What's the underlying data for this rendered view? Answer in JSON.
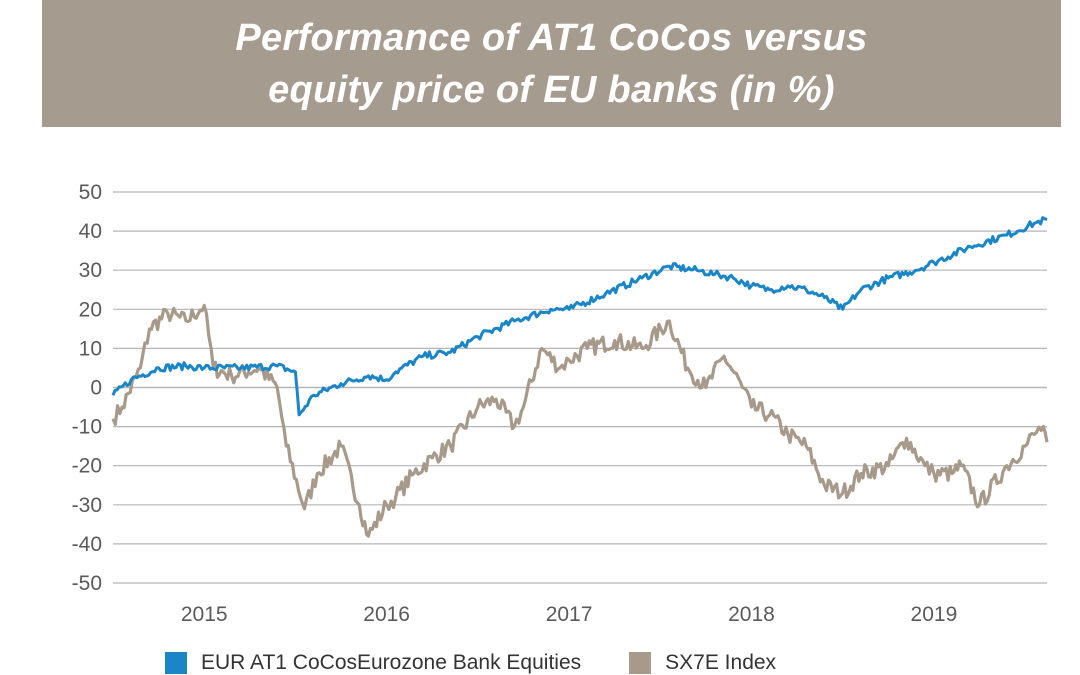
{
  "title": {
    "line1": "Performance of AT1 CoCos versus",
    "line2": "equity price of EU banks (in %)"
  },
  "colors": {
    "banner": "#a69b8f",
    "cocos": "#1a86c8",
    "sx7e": "#a89a8a",
    "grid": "#b5b5b5"
  },
  "chart_data": {
    "type": "line",
    "title": "Performance of AT1 CoCos versus equity price of EU banks (in %)",
    "xlabel": "",
    "ylabel": "",
    "ylim": [
      -50,
      50
    ],
    "yticks": [
      "50",
      "40",
      "30",
      "20",
      "10",
      "0",
      "-10",
      "-20",
      "-30",
      "-40",
      "-50"
    ],
    "xticks": [
      "2015",
      "2016",
      "2017",
      "2018",
      "2019"
    ],
    "xlim": [
      2014.5,
      2019.62
    ],
    "grid": "horizontal",
    "legend_position": "bottom",
    "series": [
      {
        "name": "EUR AT1 CoCosEurozone Bank Equities",
        "color": "#1a86c8",
        "x": [
          2014.5,
          2014.6,
          2014.75,
          2014.9,
          2015.0,
          2015.2,
          2015.4,
          2015.5,
          2015.52,
          2015.6,
          2015.75,
          2015.9,
          2016.0,
          2016.05,
          2016.2,
          2016.35,
          2016.5,
          2016.7,
          2016.9,
          2017.0,
          2017.2,
          2017.4,
          2017.55,
          2017.7,
          2017.8,
          2017.9,
          2018.0,
          2018.1,
          2018.2,
          2018.3,
          2018.4,
          2018.5,
          2018.6,
          2018.75,
          2018.9,
          2019.0,
          2019.2,
          2019.4,
          2019.55,
          2019.62
        ],
        "values": [
          -2,
          2,
          5,
          5.5,
          5,
          5,
          5.5,
          4,
          -7,
          -2,
          1,
          3,
          2,
          4,
          8,
          9,
          13,
          17,
          20,
          20,
          24,
          28,
          31,
          30,
          29,
          28,
          26,
          25,
          26,
          25,
          23,
          20,
          25,
          28,
          30,
          32,
          36,
          39,
          42,
          43
        ]
      },
      {
        "name": "SX7E Index",
        "color": "#a89a8a",
        "x": [
          2014.5,
          2014.55,
          2014.65,
          2014.7,
          2014.8,
          2014.9,
          2015.0,
          2015.05,
          2015.15,
          2015.3,
          2015.4,
          2015.45,
          2015.55,
          2015.62,
          2015.75,
          2015.85,
          2015.9,
          2016.0,
          2016.05,
          2016.15,
          2016.25,
          2016.35,
          2016.5,
          2016.6,
          2016.7,
          2016.75,
          2016.85,
          2016.95,
          2017.0,
          2017.1,
          2017.25,
          2017.4,
          2017.55,
          2017.65,
          2017.75,
          2017.85,
          2017.95,
          2018.0,
          2018.1,
          2018.2,
          2018.3,
          2018.4,
          2018.5,
          2018.6,
          2018.75,
          2018.85,
          2018.95,
          2019.0,
          2019.1,
          2019.15,
          2019.25,
          2019.4,
          2019.5,
          2019.55,
          2019.6,
          2019.62
        ],
        "values": [
          -8,
          -5,
          5,
          15,
          19,
          17,
          21,
          5,
          3,
          5,
          0,
          -15,
          -31,
          -22,
          -15,
          -30,
          -38,
          -30,
          -28,
          -22,
          -18,
          -15,
          -5,
          -3,
          -10,
          -5,
          10,
          5,
          7,
          10,
          12,
          10,
          17,
          5,
          0,
          8,
          0,
          -5,
          -7,
          -12,
          -15,
          -25,
          -27,
          -22,
          -20,
          -13,
          -20,
          -22,
          -22,
          -20,
          -30,
          -20,
          -15,
          -12,
          -10,
          -14
        ]
      }
    ]
  },
  "legend": {
    "items": [
      {
        "label": "EUR AT1 CoCosEurozone Bank Equities",
        "color": "#1a86c8"
      },
      {
        "label": "SX7E Index",
        "color": "#a89a8a"
      }
    ]
  }
}
